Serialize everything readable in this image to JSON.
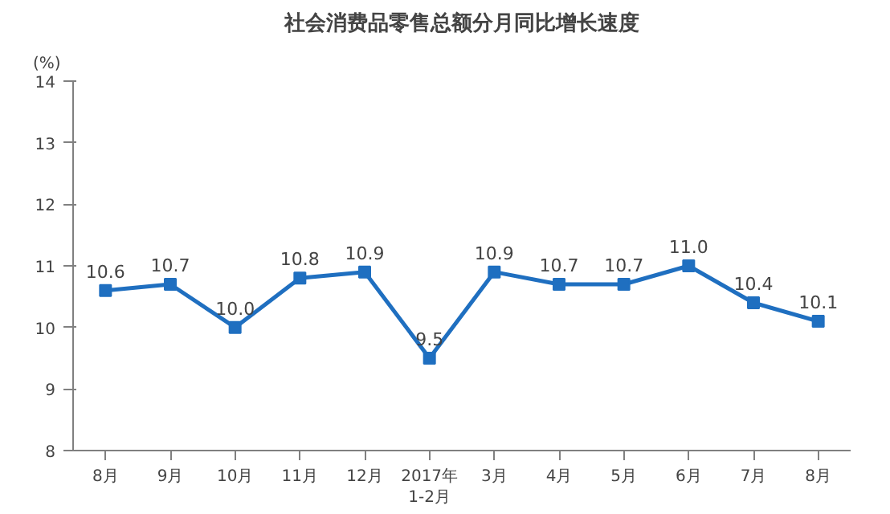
{
  "chart_data": {
    "type": "line",
    "title": "社会消费品零售总额分月同比增长速度",
    "ylabel": "(%)",
    "categories": [
      "8月",
      "9月",
      "10月",
      "11月",
      "12月",
      "2017年\n1-2月",
      "3月",
      "4月",
      "5月",
      "6月",
      "7月",
      "8月"
    ],
    "values": [
      10.6,
      10.7,
      10.0,
      10.8,
      10.9,
      9.5,
      10.9,
      10.7,
      10.7,
      11.0,
      10.4,
      10.1
    ],
    "value_labels": [
      "10.6",
      "10.7",
      "10.0",
      "10.8",
      "10.9",
      "9.5",
      "10.9",
      "10.7",
      "10.7",
      "11.0",
      "10.4",
      "10.1"
    ],
    "color": "#1f6fc0",
    "marker": "square",
    "line_style": "solid",
    "ylim": [
      8,
      14
    ],
    "yticks": [
      8,
      9,
      10,
      11,
      12,
      13,
      14
    ],
    "grid": false
  }
}
